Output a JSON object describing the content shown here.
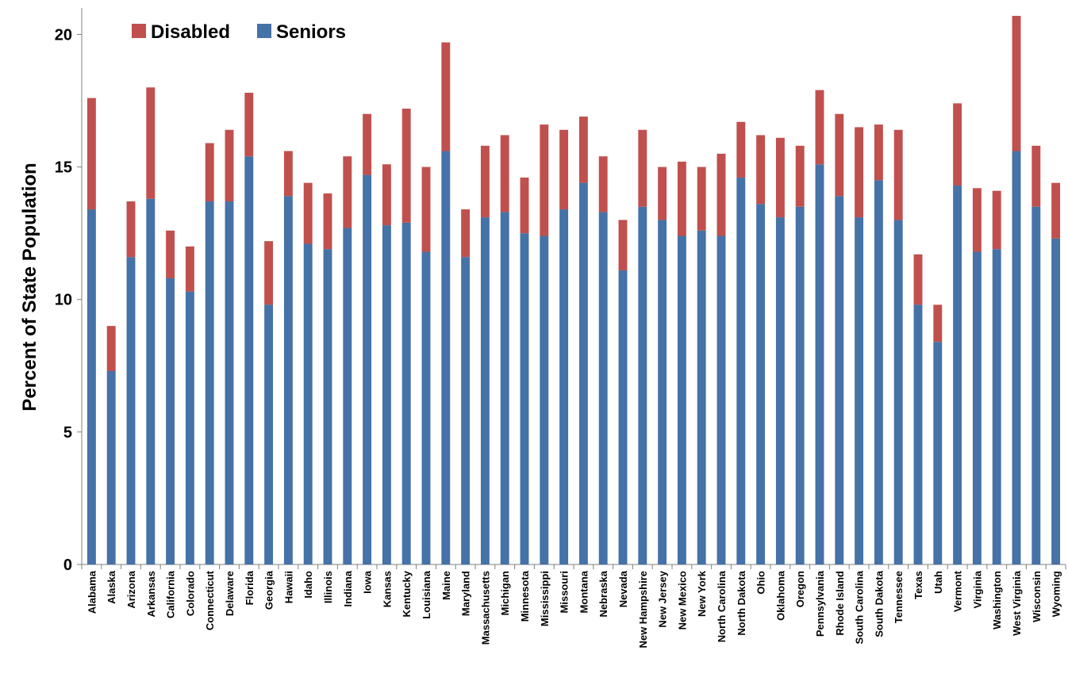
{
  "chart_data": {
    "type": "bar",
    "stacked": true,
    "title": "",
    "xlabel": "",
    "ylabel": "Percent of State Population",
    "ylim": [
      0,
      21
    ],
    "yticks": [
      0,
      5,
      10,
      15,
      20
    ],
    "grid": false,
    "legend_position": "top-left",
    "colors": {
      "Seniors": "#4572a7",
      "Disabled": "#c0504d",
      "axis": "#808080"
    },
    "legend": [
      {
        "name": "Disabled",
        "color": "#c0504d"
      },
      {
        "name": "Seniors",
        "color": "#4572a7"
      }
    ],
    "categories": [
      "Alabama",
      "Alaska",
      "Arizona",
      "Arkansas",
      "California",
      "Colorado",
      "Connecticut",
      "Delaware",
      "Florida",
      "Georgia",
      "Hawaii",
      "Idaho",
      "Illinois",
      "Indiana",
      "Iowa",
      "Kansas",
      "Kentucky",
      "Louisiana",
      "Maine",
      "Maryland",
      "Massachusetts",
      "Michigan",
      "Minnesota",
      "Mississippi",
      "Missouri",
      "Montana",
      "Nebraska",
      "Nevada",
      "New Hampshire",
      "New Jersey",
      "New Mexico",
      "New York",
      "North Carolina",
      "North Dakota",
      "Ohio",
      "Oklahoma",
      "Oregon",
      "Pennsylvania",
      "Rhode Island",
      "South Carolina",
      "South Dakota",
      "Tennessee",
      "Texas",
      "Utah",
      "Vermont",
      "Virginia",
      "Washington",
      "West Virginia",
      "Wisconsin",
      "Wyoming"
    ],
    "series": [
      {
        "name": "Seniors",
        "values": [
          13.4,
          7.3,
          11.6,
          13.8,
          10.8,
          10.3,
          13.7,
          13.7,
          15.4,
          9.8,
          13.9,
          12.1,
          11.9,
          12.7,
          14.7,
          12.8,
          12.9,
          11.8,
          15.6,
          11.6,
          13.1,
          13.3,
          12.5,
          12.4,
          13.4,
          14.4,
          13.3,
          11.1,
          13.5,
          13.0,
          12.4,
          12.6,
          12.4,
          14.6,
          13.6,
          13.1,
          13.5,
          15.1,
          13.9,
          13.1,
          14.5,
          13.0,
          9.8,
          8.4,
          14.3,
          11.8,
          11.9,
          15.6,
          13.5,
          12.3
        ]
      },
      {
        "name": "Disabled",
        "values": [
          4.2,
          1.7,
          2.1,
          4.2,
          1.8,
          1.7,
          2.2,
          2.7,
          2.4,
          2.4,
          1.7,
          2.3,
          2.1,
          2.7,
          2.3,
          2.3,
          4.3,
          3.2,
          4.1,
          1.8,
          2.7,
          2.9,
          2.1,
          4.2,
          3.0,
          2.5,
          2.1,
          1.9,
          2.9,
          2.0,
          2.8,
          2.4,
          3.1,
          2.1,
          2.6,
          3.0,
          2.3,
          2.8,
          3.1,
          3.4,
          2.1,
          3.4,
          1.9,
          1.4,
          3.1,
          2.4,
          2.2,
          5.1,
          2.3,
          2.1
        ]
      }
    ]
  }
}
